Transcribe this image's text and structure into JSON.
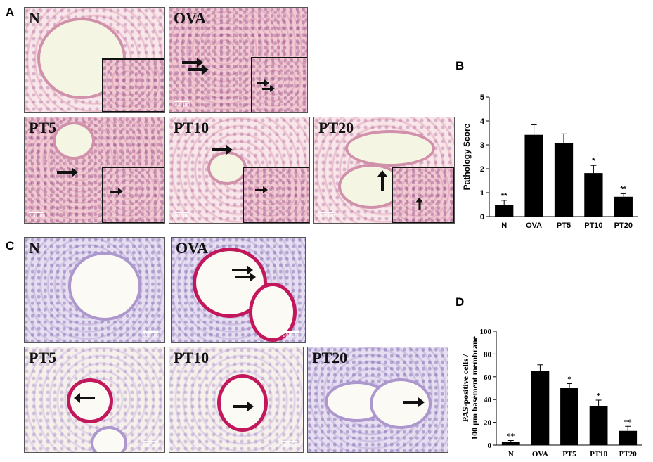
{
  "panels": {
    "a": "A",
    "b": "B",
    "c": "C",
    "d": "D"
  },
  "micrographs": {
    "he": [
      {
        "label": "N",
        "scale": ""
      },
      {
        "label": "OVA",
        "scale": "200 µm"
      },
      {
        "label": "PT5",
        "scale": "200 µm"
      },
      {
        "label": "PT10",
        "scale": "200 µm"
      },
      {
        "label": "PT20",
        "scale": "200 µm"
      }
    ],
    "pas": [
      {
        "label": "N",
        "scale": "200 µm"
      },
      {
        "label": "OVA",
        "scale": "200 µm"
      },
      {
        "label": "PT5",
        "scale": "200 µm"
      },
      {
        "label": "PT10",
        "scale": "200 µm"
      },
      {
        "label": "PT20",
        "scale": "200 µm"
      }
    ]
  },
  "chart_data": [
    {
      "type": "bar",
      "panel": "B",
      "categories": [
        "N",
        "OVA",
        "PT5",
        "PT10",
        "PT20"
      ],
      "values": [
        0.5,
        3.42,
        3.08,
        1.82,
        0.83
      ],
      "errors": [
        0.18,
        0.42,
        0.38,
        0.32,
        0.13
      ],
      "significance": [
        "**",
        "",
        "",
        "*",
        "**"
      ],
      "xlabel": "",
      "ylabel": "Pathology Score",
      "ylim": [
        0,
        5
      ],
      "yticks": [
        0,
        1,
        2,
        3,
        4,
        5
      ],
      "grid": false,
      "bar_color": "#000000"
    },
    {
      "type": "bar",
      "panel": "D",
      "categories": [
        "N",
        "OVA",
        "PT5",
        "PT10",
        "PT20"
      ],
      "values": [
        3,
        65,
        50,
        34.5,
        12.5
      ],
      "errors": [
        1,
        5.5,
        4,
        5,
        4
      ],
      "significance": [
        "**",
        "",
        "*",
        "*",
        "**"
      ],
      "xlabel": "",
      "ylabel": [
        "PAS-positive cells /",
        "100 µm basement membrane"
      ],
      "ylim": [
        0,
        100
      ],
      "yticks": [
        0,
        20,
        40,
        60,
        80,
        100
      ],
      "grid": false,
      "bar_color": "#000000"
    }
  ]
}
